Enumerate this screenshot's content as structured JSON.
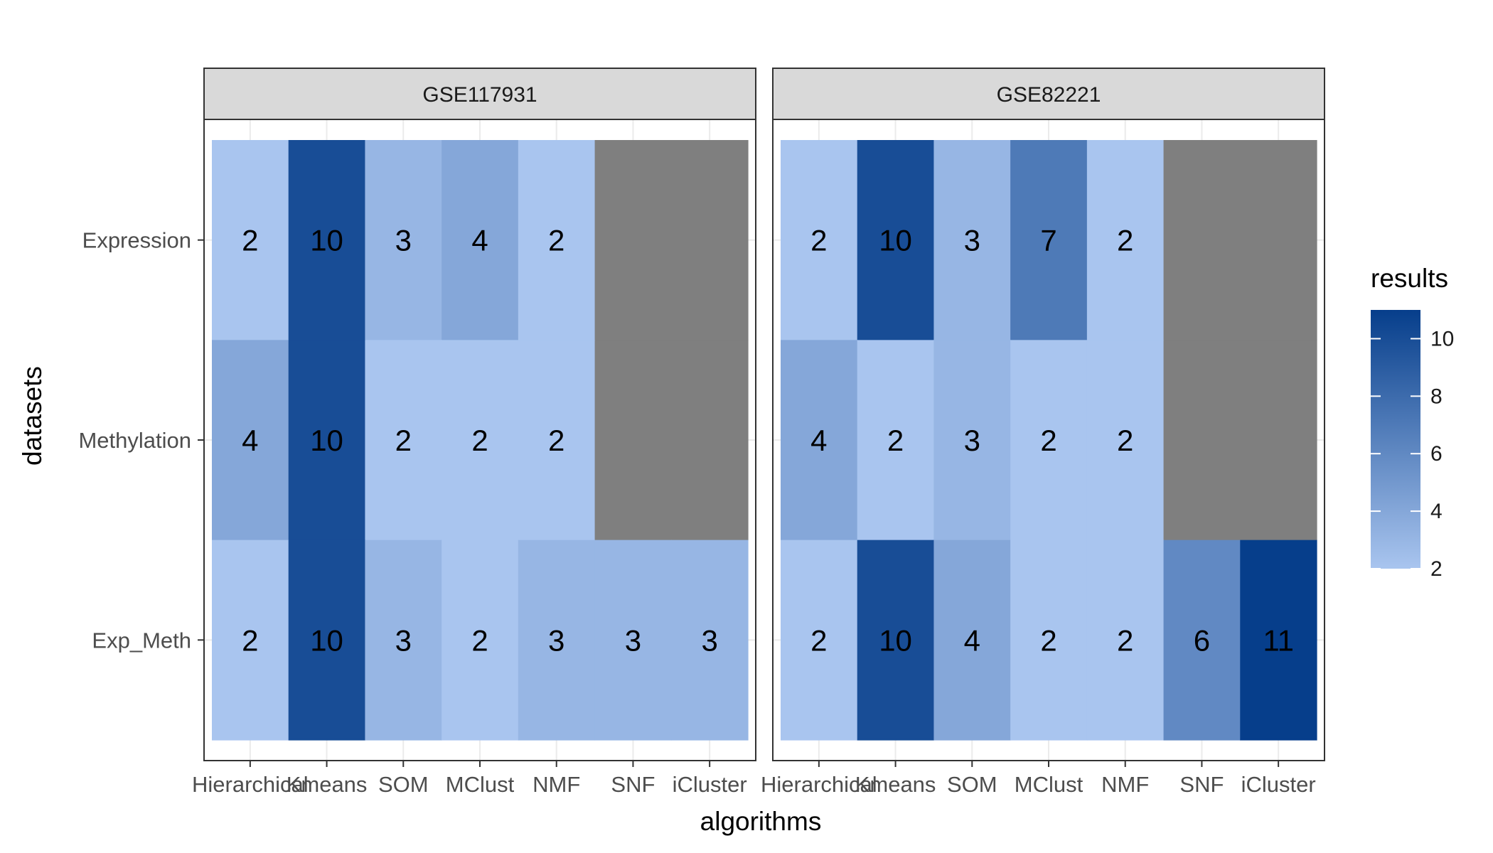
{
  "chart_data": {
    "type": "heatmap",
    "xlabel": "algorithms",
    "ylabel": "datasets",
    "legend_title": "results",
    "legend_ticks": [
      2,
      4,
      6,
      8,
      10
    ],
    "color_min": 2,
    "color_max": 11,
    "color_low": "#a9c5ef",
    "color_high": "#063e8b",
    "na_color": "#7f7f7f",
    "strip_color": "#d9d9d9",
    "grid": true,
    "legend_position": "right",
    "algorithms": [
      "Hierarchical",
      "Kmeans",
      "SOM",
      "MClust",
      "NMF",
      "SNF",
      "iCluster"
    ],
    "datasets": [
      "Expression",
      "Methylation",
      "Exp_Meth"
    ],
    "facets": [
      {
        "name": "GSE117931",
        "values": [
          [
            2,
            10,
            3,
            4,
            2,
            null,
            null
          ],
          [
            4,
            10,
            2,
            2,
            2,
            null,
            null
          ],
          [
            2,
            10,
            3,
            2,
            3,
            3,
            3
          ]
        ]
      },
      {
        "name": "GSE82221",
        "values": [
          [
            2,
            10,
            3,
            7,
            2,
            null,
            null
          ],
          [
            4,
            2,
            3,
            2,
            2,
            null,
            null
          ],
          [
            2,
            10,
            4,
            2,
            2,
            6,
            11
          ]
        ]
      }
    ]
  }
}
